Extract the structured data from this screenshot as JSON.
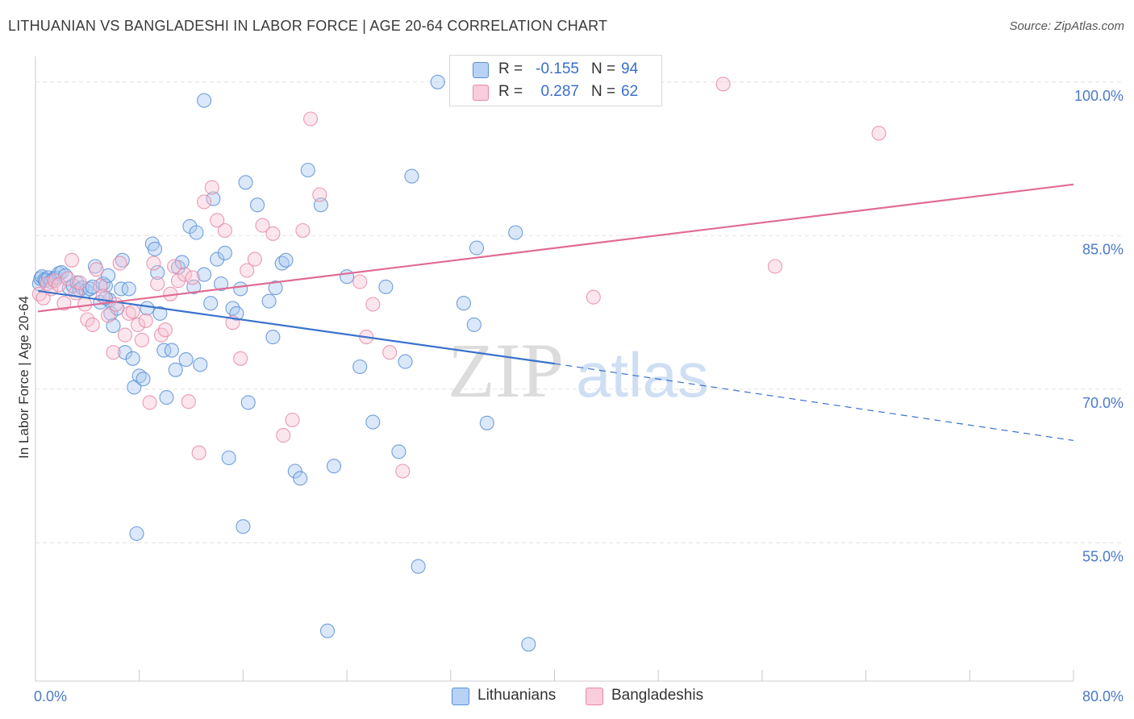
{
  "header": {
    "title": "LITHUANIAN VS BANGLADESHI IN LABOR FORCE | AGE 20-64 CORRELATION CHART",
    "source": "Source: ZipAtlas.com"
  },
  "watermark": {
    "part1": "ZIP",
    "part2": "atlas"
  },
  "legend": {
    "series": [
      {
        "r_label": "R =",
        "r_value": "-0.155",
        "n_label": "N =",
        "n_value": "94"
      },
      {
        "r_label": "R =",
        "r_value": "0.287",
        "n_label": "N =",
        "n_value": "62"
      }
    ]
  },
  "bottom_legend": {
    "items": [
      "Lithuanians",
      "Bangladeshis"
    ]
  },
  "chart_data": {
    "type": "scatter",
    "title": "LITHUANIAN VS BANGLADESHI IN LABOR FORCE | AGE 20-64 CORRELATION CHART",
    "xlabel": "",
    "ylabel": "In Labor Force | Age 20-64",
    "xlim": [
      0,
      80
    ],
    "ylim": [
      41.5,
      102.5
    ],
    "x_tick_labels": [
      {
        "value": 0,
        "label": "0.0%"
      },
      {
        "value": 80,
        "label": "80.0%"
      }
    ],
    "y_tick_labels": [
      {
        "value": 55,
        "label": "55.0%"
      },
      {
        "value": 70,
        "label": "70.0%"
      },
      {
        "value": 85,
        "label": "85.0%"
      },
      {
        "value": 100,
        "label": "100.0%"
      }
    ],
    "x_minor_ticks": [
      0,
      8,
      16,
      24,
      32,
      40,
      48,
      56,
      64,
      72,
      80
    ],
    "grid": true,
    "legend_position": "top-center",
    "colors": {
      "lithuanians_fill": "#a8c8f0",
      "lithuanians_stroke": "#5b8fd6",
      "lithuanians_line": "#3a72cc",
      "bangladeshis_fill": "#f7c3d3",
      "bangladeshis_stroke": "#e58aa8",
      "bangladeshis_line": "#e06c93",
      "tick_text": "#4a7ac9"
    },
    "series": [
      {
        "name": "Lithuanians",
        "trend": {
          "x_start": 0.2,
          "y_start": 79.6,
          "x_solid_end": 40.0,
          "y_solid_end": 72.5,
          "x_end": 80.0,
          "y_end": 65.0
        },
        "points": [
          [
            0.3,
            80.3
          ],
          [
            0.4,
            80.8
          ],
          [
            0.5,
            81.0
          ],
          [
            0.7,
            80.7
          ],
          [
            0.8,
            80.6
          ],
          [
            1.0,
            80.9
          ],
          [
            1.2,
            80.5
          ],
          [
            1.4,
            80.8
          ],
          [
            1.6,
            80.9
          ],
          [
            1.8,
            81.3
          ],
          [
            2.0,
            81.4
          ],
          [
            2.3,
            81.1
          ],
          [
            2.6,
            79.9
          ],
          [
            2.9,
            80.1
          ],
          [
            3.2,
            80.4
          ],
          [
            3.4,
            79.7
          ],
          [
            3.6,
            79.9
          ],
          [
            3.9,
            79.6
          ],
          [
            4.2,
            79.8
          ],
          [
            4.4,
            80.0
          ],
          [
            4.6,
            82.0
          ],
          [
            5.0,
            78.5
          ],
          [
            5.2,
            80.3
          ],
          [
            5.4,
            80.1
          ],
          [
            5.6,
            81.1
          ],
          [
            5.8,
            77.4
          ],
          [
            6.0,
            76.2
          ],
          [
            5.7,
            78.7
          ],
          [
            5.4,
            78.9
          ],
          [
            6.3,
            77.9
          ],
          [
            6.6,
            79.8
          ],
          [
            6.7,
            82.6
          ],
          [
            6.9,
            73.6
          ],
          [
            7.2,
            79.8
          ],
          [
            7.5,
            73.0
          ],
          [
            7.6,
            70.2
          ],
          [
            7.8,
            55.9
          ],
          [
            8.0,
            71.3
          ],
          [
            8.3,
            71.0
          ],
          [
            8.6,
            77.9
          ],
          [
            9.0,
            84.2
          ],
          [
            9.2,
            83.7
          ],
          [
            9.4,
            81.4
          ],
          [
            9.6,
            77.4
          ],
          [
            9.9,
            73.8
          ],
          [
            10.1,
            69.2
          ],
          [
            10.5,
            73.8
          ],
          [
            10.8,
            71.9
          ],
          [
            11.0,
            81.9
          ],
          [
            11.3,
            82.4
          ],
          [
            11.6,
            72.9
          ],
          [
            11.9,
            85.9
          ],
          [
            12.2,
            80.0
          ],
          [
            12.4,
            85.3
          ],
          [
            12.7,
            72.4
          ],
          [
            13.0,
            81.2
          ],
          [
            13.0,
            98.2
          ],
          [
            13.5,
            78.4
          ],
          [
            13.7,
            88.6
          ],
          [
            14.0,
            82.7
          ],
          [
            14.3,
            80.3
          ],
          [
            14.6,
            83.3
          ],
          [
            14.9,
            63.3
          ],
          [
            15.2,
            77.9
          ],
          [
            15.5,
            77.4
          ],
          [
            15.8,
            79.8
          ],
          [
            16.0,
            56.6
          ],
          [
            16.2,
            90.2
          ],
          [
            16.4,
            68.7
          ],
          [
            17.1,
            88.0
          ],
          [
            18.0,
            78.6
          ],
          [
            18.3,
            75.1
          ],
          [
            18.5,
            79.9
          ],
          [
            19.0,
            82.3
          ],
          [
            19.3,
            82.6
          ],
          [
            20.0,
            62.0
          ],
          [
            20.4,
            61.3
          ],
          [
            21.0,
            91.4
          ],
          [
            22.0,
            88.0
          ],
          [
            22.5,
            46.4
          ],
          [
            23.0,
            62.5
          ],
          [
            24.0,
            81.0
          ],
          [
            25.0,
            72.2
          ],
          [
            26.0,
            66.8
          ],
          [
            27.0,
            80.0
          ],
          [
            28.0,
            63.9
          ],
          [
            28.5,
            72.7
          ],
          [
            29.0,
            90.8
          ],
          [
            29.5,
            52.7
          ],
          [
            31.0,
            100.0
          ],
          [
            33.0,
            78.4
          ],
          [
            33.8,
            76.3
          ],
          [
            34.0,
            83.8
          ],
          [
            34.8,
            66.7
          ],
          [
            37.0,
            85.3
          ],
          [
            38.0,
            45.1
          ]
        ]
      },
      {
        "name": "Bangladeshis",
        "trend": {
          "x_start": 0.2,
          "y_start": 77.6,
          "x_end": 80.0,
          "y_end": 90.0
        },
        "points": [
          [
            0.3,
            79.3
          ],
          [
            0.6,
            78.9
          ],
          [
            0.9,
            80.3
          ],
          [
            1.2,
            79.8
          ],
          [
            1.5,
            80.6
          ],
          [
            1.8,
            80.2
          ],
          [
            2.2,
            78.4
          ],
          [
            2.5,
            80.8
          ],
          [
            2.8,
            82.6
          ],
          [
            3.1,
            79.4
          ],
          [
            3.4,
            80.4
          ],
          [
            3.8,
            78.3
          ],
          [
            4.0,
            76.8
          ],
          [
            4.4,
            76.3
          ],
          [
            4.7,
            81.7
          ],
          [
            5.0,
            80.1
          ],
          [
            5.2,
            79.1
          ],
          [
            5.6,
            77.2
          ],
          [
            6.0,
            73.6
          ],
          [
            6.2,
            78.3
          ],
          [
            6.5,
            82.3
          ],
          [
            6.9,
            75.3
          ],
          [
            7.2,
            77.4
          ],
          [
            7.5,
            77.6
          ],
          [
            7.9,
            76.3
          ],
          [
            8.2,
            74.8
          ],
          [
            8.5,
            76.7
          ],
          [
            8.8,
            68.7
          ],
          [
            9.1,
            82.3
          ],
          [
            9.4,
            80.3
          ],
          [
            9.7,
            75.3
          ],
          [
            10.0,
            75.8
          ],
          [
            10.4,
            79.3
          ],
          [
            10.7,
            82.0
          ],
          [
            11.0,
            80.6
          ],
          [
            11.5,
            81.2
          ],
          [
            11.8,
            68.8
          ],
          [
            12.1,
            80.9
          ],
          [
            12.6,
            63.8
          ],
          [
            13.0,
            88.3
          ],
          [
            13.6,
            89.7
          ],
          [
            14.0,
            86.5
          ],
          [
            14.6,
            85.5
          ],
          [
            15.2,
            76.5
          ],
          [
            15.8,
            73.0
          ],
          [
            16.3,
            81.6
          ],
          [
            16.9,
            82.7
          ],
          [
            17.5,
            86.0
          ],
          [
            18.3,
            85.2
          ],
          [
            19.1,
            65.5
          ],
          [
            19.8,
            67.0
          ],
          [
            20.6,
            85.5
          ],
          [
            21.2,
            96.4
          ],
          [
            21.9,
            89.0
          ],
          [
            25.0,
            80.5
          ],
          [
            25.5,
            75.1
          ],
          [
            26.0,
            78.3
          ],
          [
            27.3,
            73.6
          ],
          [
            28.3,
            62.0
          ],
          [
            43.0,
            79.0
          ],
          [
            53.0,
            99.8
          ],
          [
            57.0,
            82.0
          ],
          [
            65.0,
            95.0
          ]
        ]
      }
    ]
  }
}
